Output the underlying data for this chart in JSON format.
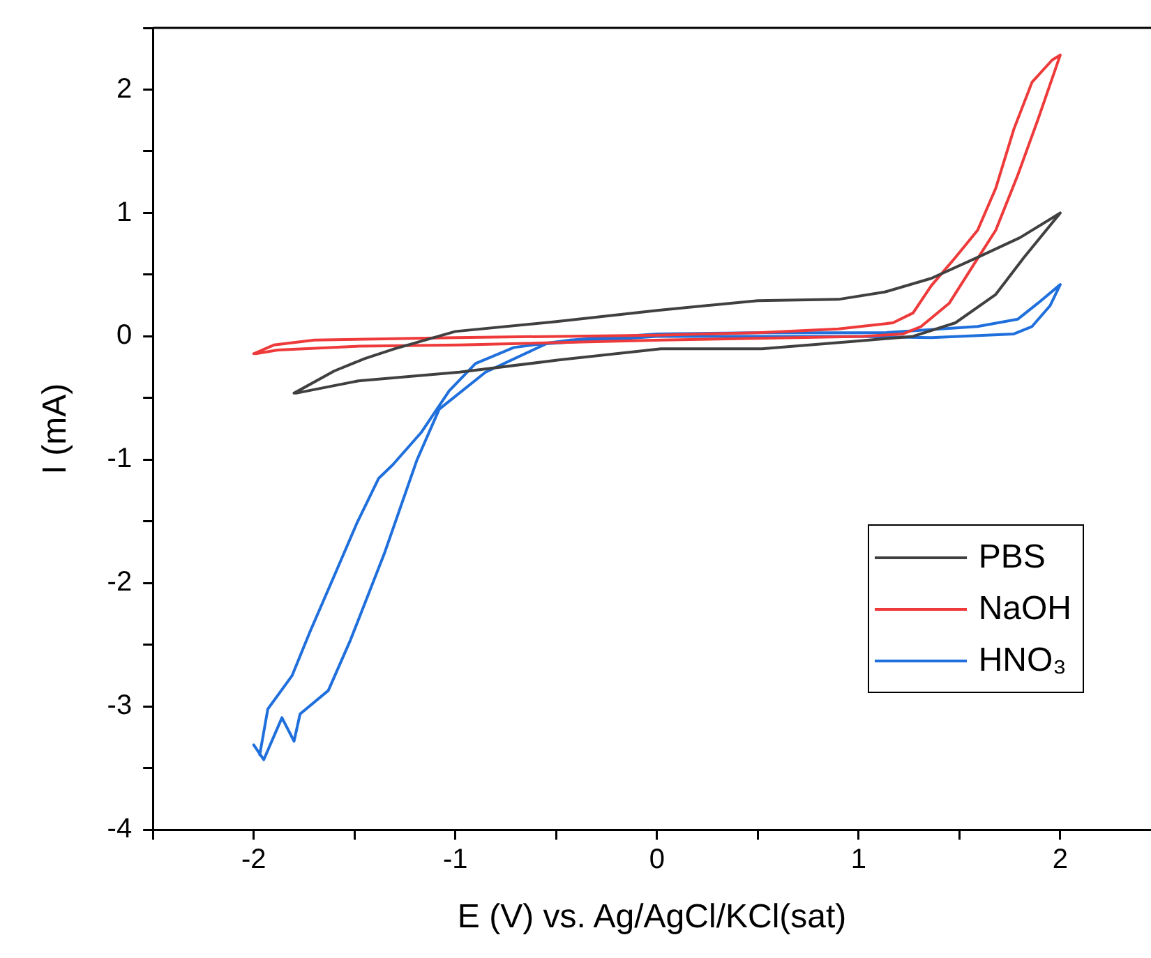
{
  "chart_data": {
    "type": "line",
    "xlabel": "E (V) vs. Ag/AgCl/KCl(sat)",
    "ylabel": "I (mA)",
    "xlim": [
      -2.5,
      2.45
    ],
    "ylim": [
      -4,
      2.5
    ],
    "xticks": [
      {
        "value": -2.5,
        "label": null
      },
      -2,
      {
        "value": -1.5,
        "label": null
      },
      -1,
      {
        "value": -0.5,
        "label": null
      },
      0,
      {
        "value": 0.5,
        "label": null
      },
      1,
      {
        "value": 1.5,
        "label": null
      },
      2
    ],
    "yticks": [
      -4,
      {
        "value": -3.5,
        "label": null
      },
      -3,
      {
        "value": -2.5,
        "label": null
      },
      -2,
      {
        "value": -1.5,
        "label": null
      },
      -1,
      {
        "value": -0.5,
        "label": null
      },
      0,
      {
        "value": 0.5,
        "label": null
      },
      1,
      {
        "value": 1.5,
        "label": null
      },
      2,
      {
        "value": 2.5,
        "label": null
      }
    ],
    "grid": false,
    "legend": "bottom right",
    "marker": "none",
    "line_style": "solid",
    "series": [
      {
        "name": "PBS",
        "color": "#404040",
        "x": [
          -1.8,
          -1.6,
          -1.45,
          -1.3,
          -1.0,
          -0.5,
          0,
          0.5,
          0.9,
          1.13,
          1.36,
          1.59,
          1.8,
          2.0,
          1.82,
          1.68,
          1.48,
          1.27,
          0.98,
          0.52,
          0.02,
          -0.48,
          -0.98,
          -1.48,
          -1.79
        ],
        "values": [
          -0.46,
          -0.28,
          -0.18,
          -0.1,
          0.04,
          0.12,
          0.21,
          0.29,
          0.3,
          0.36,
          0.47,
          0.64,
          0.8,
          1.0,
          0.64,
          0.34,
          0.11,
          0.0,
          -0.04,
          -0.1,
          -0.1,
          -0.19,
          -0.29,
          -0.36,
          -0.46
        ]
      },
      {
        "name": "NaOH",
        "color": "#ee3a3a",
        "x": [
          -2.0,
          -1.9,
          -1.7,
          -1.0,
          0,
          0.5,
          0.9,
          1.17,
          1.27,
          1.36,
          1.48,
          1.59,
          1.68,
          1.77,
          1.86,
          1.96,
          2.0,
          1.89,
          1.79,
          1.68,
          1.57,
          1.45,
          1.31,
          1.22,
          1.02,
          0.02,
          -0.98,
          -1.48,
          -1.88,
          -1.99
        ],
        "values": [
          -0.14,
          -0.07,
          -0.03,
          -0.01,
          0.01,
          0.03,
          0.06,
          0.11,
          0.19,
          0.41,
          0.64,
          0.86,
          1.2,
          1.68,
          2.06,
          2.24,
          2.28,
          1.76,
          1.31,
          0.86,
          0.58,
          0.27,
          0.08,
          0.02,
          0.0,
          -0.03,
          -0.07,
          -0.08,
          -0.11,
          -0.14
        ]
      },
      {
        "name": "HNO₃",
        "color": "#1f6fdc",
        "x": [
          -2.0,
          -1.95,
          -1.86,
          -1.8,
          -1.77,
          -1.63,
          -1.52,
          -1.35,
          -1.19,
          -1.08,
          -0.85,
          -0.55,
          0,
          0.5,
          1.0,
          1.36,
          1.77,
          1.86,
          1.95,
          2.0,
          1.89,
          1.79,
          1.59,
          1.13,
          0.5,
          0,
          -0.43,
          -0.71,
          -0.9,
          -1.03,
          -1.17,
          -1.31,
          -1.38,
          -1.49,
          -1.59,
          -1.72,
          -1.81,
          -1.93,
          -1.97
        ],
        "values": [
          -3.31,
          -3.43,
          -3.09,
          -3.28,
          -3.06,
          -2.87,
          -2.46,
          -1.75,
          -1.0,
          -0.59,
          -0.29,
          -0.06,
          0.0,
          0.0,
          0.0,
          -0.01,
          0.02,
          0.08,
          0.25,
          0.42,
          0.27,
          0.14,
          0.08,
          0.03,
          0.03,
          0.02,
          -0.03,
          -0.09,
          -0.22,
          -0.44,
          -0.78,
          -1.04,
          -1.15,
          -1.52,
          -1.9,
          -2.39,
          -2.75,
          -3.02,
          -3.39
        ]
      }
    ]
  }
}
